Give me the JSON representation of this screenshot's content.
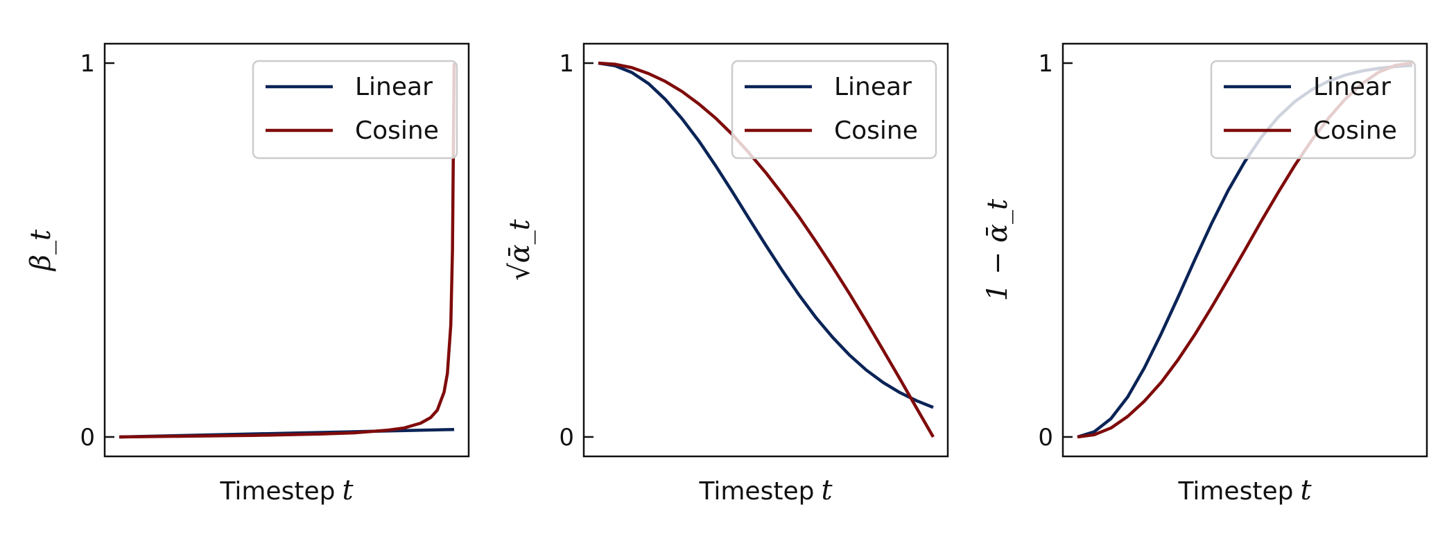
{
  "colors": {
    "linear": "#0b2457",
    "cosine": "#7f0b0b",
    "axis": "#111111",
    "legend_border": "#cccccc"
  },
  "chart_data": [
    {
      "type": "line",
      "ylabel": "β_t",
      "xlabel": "Timestep",
      "xlabel_var": "t",
      "x_ticks_shown": false,
      "ylim": [
        0,
        1
      ],
      "yticks": [
        0,
        1
      ],
      "ytick_labels": [
        "0",
        "1"
      ],
      "legend": {
        "position": "top-right",
        "entries": [
          "Linear",
          "Cosine"
        ]
      },
      "series": [
        {
          "name": "Linear",
          "color": "#0b2457",
          "x": [
            0,
            0.25,
            0.5,
            0.75,
            1.0
          ],
          "y": [
            0.0,
            0.005,
            0.01,
            0.015,
            0.02
          ]
        },
        {
          "name": "Cosine",
          "color": "#7f0b0b",
          "x": [
            0,
            0.2,
            0.4,
            0.6,
            0.7,
            0.8,
            0.85,
            0.9,
            0.93,
            0.95,
            0.97,
            0.98,
            0.99,
            0.995,
            1.0
          ],
          "y": [
            0.0,
            0.002,
            0.004,
            0.008,
            0.011,
            0.018,
            0.024,
            0.037,
            0.052,
            0.072,
            0.12,
            0.17,
            0.3,
            0.5,
            1.0
          ]
        }
      ]
    },
    {
      "type": "line",
      "ylabel": "√ᾱ_t",
      "xlabel": "Timestep",
      "xlabel_var": "t",
      "x_ticks_shown": false,
      "ylim": [
        0,
        1
      ],
      "yticks": [
        0,
        1
      ],
      "ytick_labels": [
        "0",
        "1"
      ],
      "legend": {
        "position": "top-right",
        "entries": [
          "Linear",
          "Cosine"
        ]
      },
      "series": [
        {
          "name": "Linear",
          "color": "#0b2457",
          "x": [
            0,
            0.05,
            0.1,
            0.15,
            0.2,
            0.25,
            0.3,
            0.35,
            0.4,
            0.45,
            0.5,
            0.55,
            0.6,
            0.65,
            0.7,
            0.75,
            0.8,
            0.85,
            0.9,
            0.95,
            1.0
          ],
          "y": [
            1.0,
            0.993,
            0.975,
            0.945,
            0.903,
            0.851,
            0.792,
            0.726,
            0.656,
            0.584,
            0.513,
            0.444,
            0.379,
            0.319,
            0.266,
            0.219,
            0.179,
            0.146,
            0.119,
            0.097,
            0.079
          ]
        },
        {
          "name": "Cosine",
          "color": "#7f0b0b",
          "x": [
            0,
            0.05,
            0.1,
            0.15,
            0.2,
            0.25,
            0.3,
            0.35,
            0.4,
            0.45,
            0.5,
            0.55,
            0.6,
            0.65,
            0.7,
            0.75,
            0.8,
            0.85,
            0.9,
            0.95,
            1.0
          ],
          "y": [
            1.0,
            0.997,
            0.988,
            0.972,
            0.951,
            0.924,
            0.891,
            0.853,
            0.809,
            0.76,
            0.707,
            0.649,
            0.588,
            0.522,
            0.454,
            0.383,
            0.309,
            0.233,
            0.156,
            0.078,
            0.0
          ]
        }
      ]
    },
    {
      "type": "line",
      "ylabel": "1 − ᾱ_t",
      "xlabel": "Timestep",
      "xlabel_var": "t",
      "x_ticks_shown": false,
      "ylim": [
        0,
        1
      ],
      "yticks": [
        0,
        1
      ],
      "ytick_labels": [
        "0",
        "1"
      ],
      "legend": {
        "position": "top-right",
        "entries": [
          "Linear",
          "Cosine"
        ]
      },
      "series": [
        {
          "name": "Linear",
          "color": "#0b2457",
          "x": [
            0,
            0.05,
            0.1,
            0.15,
            0.2,
            0.25,
            0.3,
            0.35,
            0.4,
            0.45,
            0.5,
            0.55,
            0.6,
            0.65,
            0.7,
            0.75,
            0.8,
            0.85,
            0.9,
            0.95,
            1.0
          ],
          "y": [
            0.0,
            0.014,
            0.049,
            0.107,
            0.185,
            0.276,
            0.373,
            0.473,
            0.57,
            0.659,
            0.737,
            0.803,
            0.856,
            0.898,
            0.929,
            0.952,
            0.968,
            0.979,
            0.986,
            0.991,
            0.994
          ]
        },
        {
          "name": "Cosine",
          "color": "#7f0b0b",
          "x": [
            0,
            0.05,
            0.1,
            0.15,
            0.2,
            0.25,
            0.3,
            0.35,
            0.4,
            0.45,
            0.5,
            0.55,
            0.6,
            0.65,
            0.7,
            0.75,
            0.8,
            0.85,
            0.9,
            0.95,
            1.0
          ],
          "y": [
            0.0,
            0.006,
            0.024,
            0.055,
            0.096,
            0.146,
            0.206,
            0.273,
            0.346,
            0.422,
            0.5,
            0.579,
            0.655,
            0.728,
            0.794,
            0.853,
            0.904,
            0.945,
            0.976,
            0.994,
            1.0
          ]
        }
      ]
    }
  ]
}
